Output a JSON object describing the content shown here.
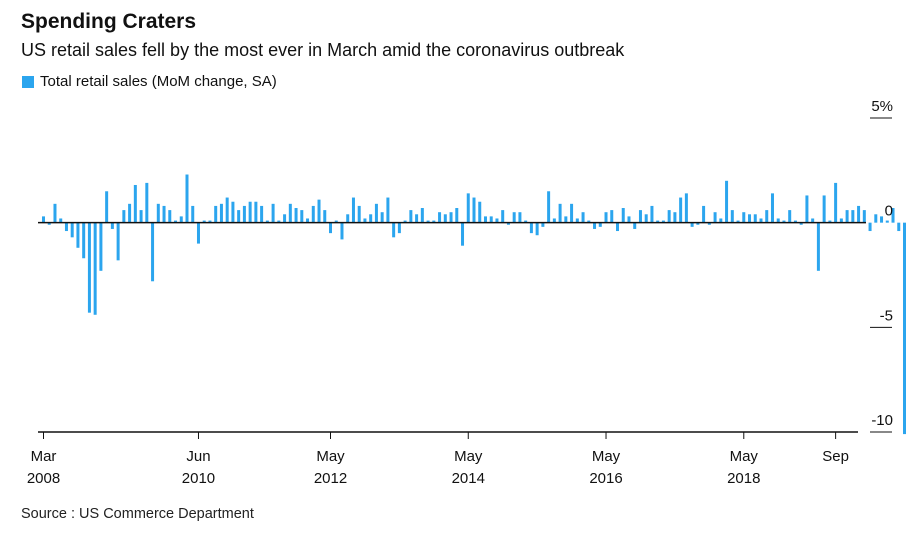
{
  "title": "Spending Craters",
  "subtitle": "US retail sales fell by the most ever in March amid the coronavirus outbreak",
  "source": "Source : US Commerce Department",
  "colors": {
    "bar": "#2ba5ee",
    "axis": "#111111"
  },
  "chart_data": {
    "type": "bar",
    "title": "Spending Craters",
    "legend": [
      "Total retail sales (MoM change, SA)"
    ],
    "ylim": [
      -10,
      5
    ],
    "yticks": [
      "5%",
      "0",
      "-5",
      "-10"
    ],
    "ytick_values": [
      5,
      0,
      -5,
      -10
    ],
    "x_start_index": 0,
    "xticks": [
      {
        "index": 0,
        "label": "Mar",
        "year": "2008"
      },
      {
        "index": 27,
        "label": "Jun",
        "year": "2010"
      },
      {
        "index": 50,
        "label": "May",
        "year": "2012"
      },
      {
        "index": 74,
        "label": "May",
        "year": "2014"
      },
      {
        "index": 98,
        "label": "May",
        "year": "2016"
      },
      {
        "index": 122,
        "label": "May",
        "year": "2018"
      },
      {
        "index": 138,
        "label": "Sep",
        "year": ""
      }
    ],
    "series": [
      {
        "name": "Total retail sales (MoM change, SA)",
        "values": [
          0.3,
          -0.1,
          0.9,
          0.2,
          -0.4,
          -0.7,
          -1.2,
          -1.7,
          -4.3,
          -4.4,
          -2.3,
          1.5,
          -0.3,
          -1.8,
          0.6,
          0.9,
          1.8,
          0.6,
          1.9,
          -2.8,
          0.9,
          0.8,
          0.6,
          0.1,
          0.3,
          2.3,
          0.8,
          -1.0,
          0.1,
          0.1,
          0.8,
          0.9,
          1.2,
          1.0,
          0.6,
          0.8,
          1.0,
          1.0,
          0.8,
          0.1,
          0.9,
          0.1,
          0.4,
          0.9,
          0.7,
          0.6,
          0.2,
          0.8,
          1.1,
          0.6,
          -0.5,
          0.1,
          -0.8,
          0.4,
          1.2,
          0.8,
          0.2,
          0.4,
          0.9,
          0.5,
          1.2,
          -0.7,
          -0.5,
          0.1,
          0.6,
          0.4,
          0.7,
          0.1,
          0.1,
          0.5,
          0.4,
          0.5,
          0.7,
          -1.1,
          1.4,
          1.2,
          1.0,
          0.3,
          0.3,
          0.2,
          0.6,
          -0.1,
          0.5,
          0.5,
          0.1,
          -0.5,
          -0.6,
          -0.2,
          1.5,
          0.2,
          0.9,
          0.3,
          0.9,
          0.2,
          0.5,
          0.1,
          -0.3,
          -0.2,
          0.5,
          0.6,
          -0.4,
          0.7,
          0.3,
          -0.3,
          0.6,
          0.4,
          0.8,
          0.1,
          0.1,
          0.6,
          0.5,
          1.2,
          1.4,
          -0.2,
          -0.1,
          0.8,
          -0.1,
          0.5,
          0.2,
          2.0,
          0.6,
          0.1,
          0.5,
          0.4,
          0.4,
          0.2,
          0.6,
          1.4,
          0.2,
          0.1,
          0.6,
          0.1,
          -0.1,
          1.3,
          0.2,
          -2.3,
          1.3,
          0.1,
          1.9,
          0.2,
          0.6,
          0.6,
          0.8,
          0.6,
          -0.4,
          0.4,
          0.3,
          0.1,
          0.7,
          -0.4,
          -10.1
        ]
      }
    ]
  }
}
